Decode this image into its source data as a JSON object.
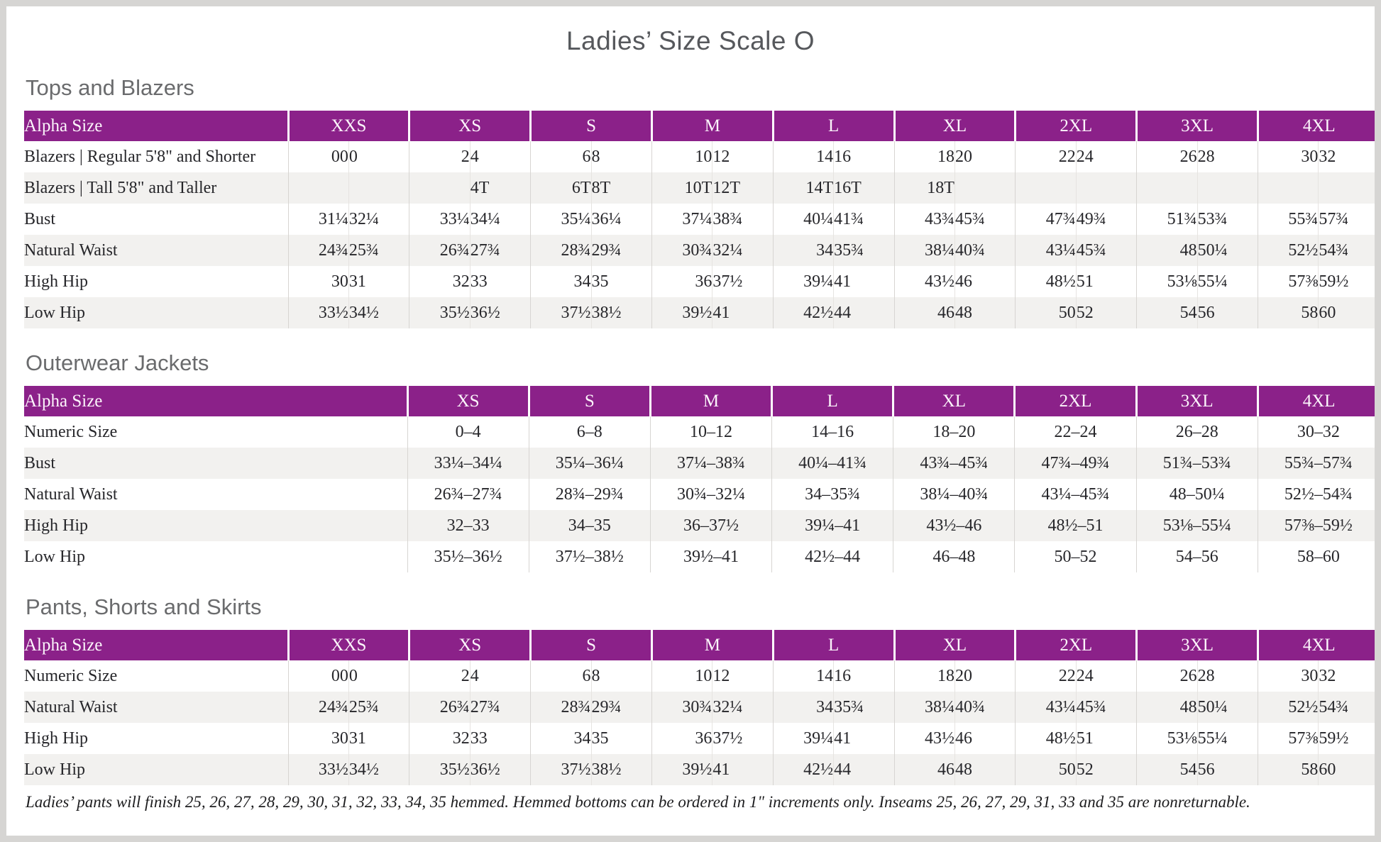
{
  "page": {
    "title": "Ladies’ Size Scale O",
    "footnote": "Ladies’ pants will finish 25, 26, 27, 28, 29, 30, 31, 32, 33, 34, 35 hemmed. Hemmed bottoms can be ordered in 1\" increments only. Inseams 25, 26, 27, 29, 31, 33 and 35 are nonreturnable."
  },
  "colors": {
    "header_purple": "#8B2189",
    "row_alt": "#F2F1EF",
    "title_gray": "#56585C",
    "section_gray": "#6A6B6D"
  },
  "tables": [
    {
      "section": "Tops and Blazers",
      "type": "paired",
      "header": {
        "label": "Alpha Size",
        "groups": [
          "XXS",
          "XS",
          "S",
          "M",
          "L",
          "XL",
          "2XL",
          "3XL",
          "4XL"
        ]
      },
      "rows": [
        {
          "label": "Blazers | Regular 5'8\" and Shorter",
          "cells": [
            [
              "00",
              "0"
            ],
            [
              "2",
              "4"
            ],
            [
              "6",
              "8"
            ],
            [
              "10",
              "12"
            ],
            [
              "14",
              "16"
            ],
            [
              "18",
              "20"
            ],
            [
              "22",
              "24"
            ],
            [
              "26",
              "28"
            ],
            [
              "30",
              "32"
            ]
          ]
        },
        {
          "label": "Blazers | Tall 5'8\" and Taller",
          "cells": [
            [
              "",
              ""
            ],
            [
              "",
              "4T"
            ],
            [
              "6T",
              "8T"
            ],
            [
              "10T",
              "12T"
            ],
            [
              "14T",
              "16T"
            ],
            [
              "18T",
              ""
            ],
            [
              "",
              ""
            ],
            [
              "",
              ""
            ],
            [
              "",
              ""
            ]
          ]
        },
        {
          "label": "Bust",
          "cells": [
            [
              "31¼",
              "32¼"
            ],
            [
              "33¼",
              "34¼"
            ],
            [
              "35¼",
              "36¼"
            ],
            [
              "37¼",
              "38¾"
            ],
            [
              "40¼",
              "41¾"
            ],
            [
              "43¾",
              "45¾"
            ],
            [
              "47¾",
              "49¾"
            ],
            [
              "51¾",
              "53¾"
            ],
            [
              "55¾",
              "57¾"
            ]
          ]
        },
        {
          "label": "Natural Waist",
          "cells": [
            [
              "24¾",
              "25¾"
            ],
            [
              "26¾",
              "27¾"
            ],
            [
              "28¾",
              "29¾"
            ],
            [
              "30¾",
              "32¼"
            ],
            [
              "34",
              "35¾"
            ],
            [
              "38¼",
              "40¾"
            ],
            [
              "43¼",
              "45¾"
            ],
            [
              "48",
              "50¼"
            ],
            [
              "52½",
              "54¾"
            ]
          ]
        },
        {
          "label": "High Hip",
          "cells": [
            [
              "30",
              "31"
            ],
            [
              "32",
              "33"
            ],
            [
              "34",
              "35"
            ],
            [
              "36",
              "37½"
            ],
            [
              "39¼",
              "41"
            ],
            [
              "43½",
              "46"
            ],
            [
              "48½",
              "51"
            ],
            [
              "53⅛",
              "55¼"
            ],
            [
              "57⅜",
              "59½"
            ]
          ]
        },
        {
          "label": "Low Hip",
          "cells": [
            [
              "33½",
              "34½"
            ],
            [
              "35½",
              "36½"
            ],
            [
              "37½",
              "38½"
            ],
            [
              "39½",
              "41"
            ],
            [
              "42½",
              "44"
            ],
            [
              "46",
              "48"
            ],
            [
              "50",
              "52"
            ],
            [
              "54",
              "56"
            ],
            [
              "58",
              "60"
            ]
          ]
        }
      ]
    },
    {
      "section": "Outerwear Jackets",
      "type": "single",
      "header": {
        "label": "Alpha Size",
        "groups": [
          "XS",
          "S",
          "M",
          "L",
          "XL",
          "2XL",
          "3XL",
          "4XL"
        ]
      },
      "rows": [
        {
          "label": "Numeric Size",
          "cells": [
            "0–4",
            "6–8",
            "10–12",
            "14–16",
            "18–20",
            "22–24",
            "26–28",
            "30–32"
          ]
        },
        {
          "label": "Bust",
          "cells": [
            "33¼–34¼",
            "35¼–36¼",
            "37¼–38¾",
            "40¼–41¾",
            "43¾–45¾",
            "47¾–49¾",
            "51¾–53¾",
            "55¾–57¾"
          ]
        },
        {
          "label": "Natural Waist",
          "cells": [
            "26¾–27¾",
            "28¾–29¾",
            "30¾–32¼",
            "34–35¾",
            "38¼–40¾",
            "43¼–45¾",
            "48–50¼",
            "52½–54¾"
          ]
        },
        {
          "label": "High Hip",
          "cells": [
            "32–33",
            "34–35",
            "36–37½",
            "39¼–41",
            "43½–46",
            "48½–51",
            "53⅛–55¼",
            "57⅜–59½"
          ]
        },
        {
          "label": "Low Hip",
          "cells": [
            "35½–36½",
            "37½–38½",
            "39½–41",
            "42½–44",
            "46–48",
            "50–52",
            "54–56",
            "58–60"
          ]
        }
      ]
    },
    {
      "section": "Pants, Shorts and Skirts",
      "type": "paired",
      "header": {
        "label": "Alpha Size",
        "groups": [
          "XXS",
          "XS",
          "S",
          "M",
          "L",
          "XL",
          "2XL",
          "3XL",
          "4XL"
        ]
      },
      "rows": [
        {
          "label": "Numeric Size",
          "cells": [
            [
              "00",
              "0"
            ],
            [
              "2",
              "4"
            ],
            [
              "6",
              "8"
            ],
            [
              "10",
              "12"
            ],
            [
              "14",
              "16"
            ],
            [
              "18",
              "20"
            ],
            [
              "22",
              "24"
            ],
            [
              "26",
              "28"
            ],
            [
              "30",
              "32"
            ]
          ]
        },
        {
          "label": "Natural Waist",
          "cells": [
            [
              "24¾",
              "25¾"
            ],
            [
              "26¾",
              "27¾"
            ],
            [
              "28¾",
              "29¾"
            ],
            [
              "30¾",
              "32¼"
            ],
            [
              "34",
              "35¾"
            ],
            [
              "38¼",
              "40¾"
            ],
            [
              "43¼",
              "45¾"
            ],
            [
              "48",
              "50¼"
            ],
            [
              "52½",
              "54¾"
            ]
          ]
        },
        {
          "label": "High Hip",
          "cells": [
            [
              "30",
              "31"
            ],
            [
              "32",
              "33"
            ],
            [
              "34",
              "35"
            ],
            [
              "36",
              "37½"
            ],
            [
              "39¼",
              "41"
            ],
            [
              "43½",
              "46"
            ],
            [
              "48½",
              "51"
            ],
            [
              "53⅛",
              "55¼"
            ],
            [
              "57⅜",
              "59½"
            ]
          ]
        },
        {
          "label": "Low Hip",
          "cells": [
            [
              "33½",
              "34½"
            ],
            [
              "35½",
              "36½"
            ],
            [
              "37½",
              "38½"
            ],
            [
              "39½",
              "41"
            ],
            [
              "42½",
              "44"
            ],
            [
              "46",
              "48"
            ],
            [
              "50",
              "52"
            ],
            [
              "54",
              "56"
            ],
            [
              "58",
              "60"
            ]
          ]
        }
      ]
    }
  ]
}
